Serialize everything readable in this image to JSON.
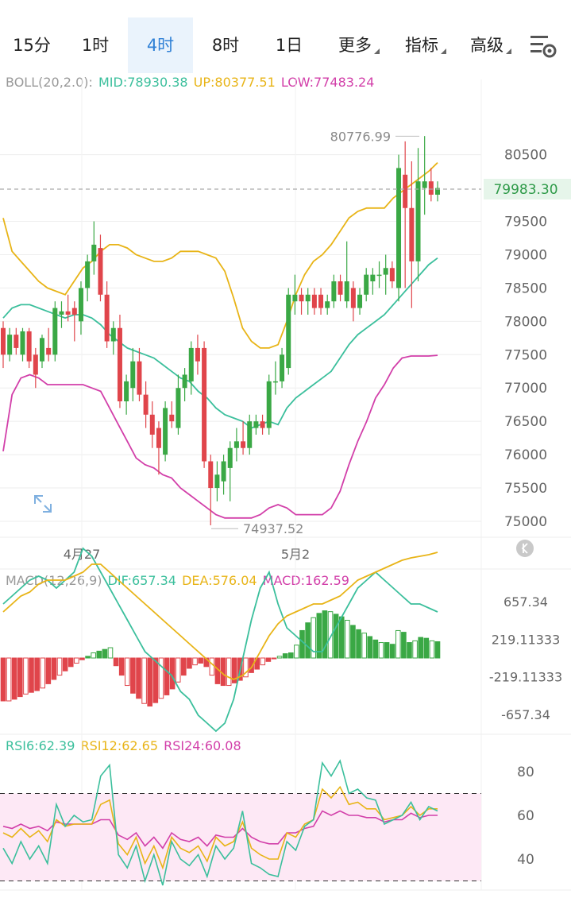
{
  "tabs": [
    {
      "label": "15分",
      "active": false,
      "dropdown": false
    },
    {
      "label": "1时",
      "active": false,
      "dropdown": false
    },
    {
      "label": "4时",
      "active": true,
      "dropdown": false
    },
    {
      "label": "8时",
      "active": false,
      "dropdown": false
    },
    {
      "label": "1日",
      "active": false,
      "dropdown": false
    },
    {
      "label": "更多",
      "active": false,
      "dropdown": true
    },
    {
      "label": "指标",
      "active": false,
      "dropdown": true
    },
    {
      "label": "高级",
      "active": false,
      "dropdown": true
    }
  ],
  "settings_icon": "chart-settings-icon",
  "boll": {
    "label": "BOLL(20,2.0):",
    "mid": "MID:78930.38",
    "up": "UP:80377.51",
    "low": "LOW:77483.24"
  },
  "macd": {
    "label": "MACD(12,26,9)",
    "dif": "DIF:657.34",
    "dea": "DEA:576.04",
    "macd": "MACD:162.59"
  },
  "rsi": {
    "rsi6": "RSI6:62.39",
    "rsi12": "RSI12:62.65",
    "rsi24": "RSI24:60.08"
  },
  "colors": {
    "up": "#3aa845",
    "down": "#e0454b",
    "mid": "#3bbf9c",
    "upper": "#e8b417",
    "lower": "#d23fa9",
    "accent": "#2f80d6"
  },
  "chart_data": {
    "type": "candlestick",
    "x_labels": [
      "4月27",
      "5月2"
    ],
    "ylim": [
      74800,
      80900
    ],
    "y_ticks": [
      "80500",
      "79500",
      "79000",
      "78500",
      "78000",
      "77500",
      "77000",
      "76500",
      "76000",
      "75500",
      "75000"
    ],
    "last_price": "79983.30",
    "high_marker": "80776.99",
    "low_marker": "74937.52",
    "candles": [
      {
        "o": 77900,
        "h": 78000,
        "l": 77300,
        "c": 77500
      },
      {
        "o": 77500,
        "h": 77900,
        "l": 77400,
        "c": 77800
      },
      {
        "o": 77800,
        "h": 77900,
        "l": 77500,
        "c": 77600
      },
      {
        "o": 77500,
        "h": 77900,
        "l": 77400,
        "c": 77850
      },
      {
        "o": 77850,
        "h": 77900,
        "l": 77300,
        "c": 77400
      },
      {
        "o": 77500,
        "h": 77600,
        "l": 77000,
        "c": 77200
      },
      {
        "o": 77400,
        "h": 77800,
        "l": 77300,
        "c": 77750
      },
      {
        "o": 77600,
        "h": 77900,
        "l": 77400,
        "c": 77500
      },
      {
        "o": 77500,
        "h": 78300,
        "l": 77400,
        "c": 78200
      },
      {
        "o": 78100,
        "h": 78300,
        "l": 77900,
        "c": 78150
      },
      {
        "o": 78150,
        "h": 78400,
        "l": 78000,
        "c": 78100
      },
      {
        "o": 78200,
        "h": 78300,
        "l": 77700,
        "c": 78100
      },
      {
        "o": 78000,
        "h": 78600,
        "l": 77800,
        "c": 78500
      },
      {
        "o": 78500,
        "h": 79000,
        "l": 78300,
        "c": 78900
      },
      {
        "o": 78900,
        "h": 79500,
        "l": 78700,
        "c": 79150
      },
      {
        "o": 79100,
        "h": 79300,
        "l": 78300,
        "c": 78400
      },
      {
        "o": 78400,
        "h": 78600,
        "l": 77600,
        "c": 77700
      },
      {
        "o": 77700,
        "h": 78000,
        "l": 77500,
        "c": 77900
      },
      {
        "o": 77900,
        "h": 78100,
        "l": 76700,
        "c": 76800
      },
      {
        "o": 76800,
        "h": 77200,
        "l": 76600,
        "c": 77100
      },
      {
        "o": 77000,
        "h": 77600,
        "l": 76800,
        "c": 77400
      },
      {
        "o": 77400,
        "h": 77600,
        "l": 76800,
        "c": 76900
      },
      {
        "o": 76900,
        "h": 77100,
        "l": 76400,
        "c": 76600
      },
      {
        "o": 76600,
        "h": 76800,
        "l": 76100,
        "c": 76300
      },
      {
        "o": 76400,
        "h": 76500,
        "l": 75700,
        "c": 76100
      },
      {
        "o": 76000,
        "h": 76800,
        "l": 75900,
        "c": 76700
      },
      {
        "o": 76600,
        "h": 76800,
        "l": 76400,
        "c": 76500
      },
      {
        "o": 76400,
        "h": 77200,
        "l": 76300,
        "c": 77000
      },
      {
        "o": 77000,
        "h": 77300,
        "l": 76800,
        "c": 77200
      },
      {
        "o": 77100,
        "h": 77700,
        "l": 76900,
        "c": 77600
      },
      {
        "o": 77600,
        "h": 77800,
        "l": 77200,
        "c": 77400
      },
      {
        "o": 77600,
        "h": 77700,
        "l": 75800,
        "c": 75900
      },
      {
        "o": 75900,
        "h": 76000,
        "l": 74940,
        "c": 75500
      },
      {
        "o": 75500,
        "h": 75900,
        "l": 75300,
        "c": 75700
      },
      {
        "o": 75600,
        "h": 76000,
        "l": 75400,
        "c": 75900
      },
      {
        "o": 75800,
        "h": 76200,
        "l": 75300,
        "c": 76100
      },
      {
        "o": 76100,
        "h": 76400,
        "l": 75900,
        "c": 76200
      },
      {
        "o": 76200,
        "h": 76500,
        "l": 76000,
        "c": 76100
      },
      {
        "o": 76100,
        "h": 76600,
        "l": 76000,
        "c": 76500
      },
      {
        "o": 76400,
        "h": 76600,
        "l": 76300,
        "c": 76500
      },
      {
        "o": 76500,
        "h": 76600,
        "l": 76300,
        "c": 76400
      },
      {
        "o": 76400,
        "h": 77200,
        "l": 76300,
        "c": 77100
      },
      {
        "o": 77100,
        "h": 77400,
        "l": 76900,
        "c": 77100
      },
      {
        "o": 77100,
        "h": 77600,
        "l": 77000,
        "c": 77500
      },
      {
        "o": 77300,
        "h": 78500,
        "l": 77200,
        "c": 78400
      },
      {
        "o": 78300,
        "h": 78700,
        "l": 78100,
        "c": 78400
      },
      {
        "o": 78400,
        "h": 78500,
        "l": 78100,
        "c": 78300
      },
      {
        "o": 78300,
        "h": 78500,
        "l": 78100,
        "c": 78400
      },
      {
        "o": 78400,
        "h": 78500,
        "l": 78100,
        "c": 78200
      },
      {
        "o": 78400,
        "h": 78500,
        "l": 78100,
        "c": 78200
      },
      {
        "o": 78200,
        "h": 78400,
        "l": 78100,
        "c": 78300
      },
      {
        "o": 78300,
        "h": 78700,
        "l": 78200,
        "c": 78600
      },
      {
        "o": 78600,
        "h": 78700,
        "l": 78300,
        "c": 78400
      },
      {
        "o": 78300,
        "h": 79200,
        "l": 78200,
        "c": 78600
      },
      {
        "o": 78500,
        "h": 78600,
        "l": 78000,
        "c": 78200
      },
      {
        "o": 78200,
        "h": 78500,
        "l": 78100,
        "c": 78400
      },
      {
        "o": 78400,
        "h": 78800,
        "l": 78300,
        "c": 78700
      },
      {
        "o": 78600,
        "h": 78800,
        "l": 78400,
        "c": 78700
      },
      {
        "o": 78700,
        "h": 78900,
        "l": 78500,
        "c": 78700
      },
      {
        "o": 78700,
        "h": 79000,
        "l": 78400,
        "c": 78800
      },
      {
        "o": 78800,
        "h": 78900,
        "l": 78500,
        "c": 78600
      },
      {
        "o": 78500,
        "h": 80500,
        "l": 78300,
        "c": 80300
      },
      {
        "o": 80200,
        "h": 80700,
        "l": 78500,
        "c": 79700
      },
      {
        "o": 79700,
        "h": 80400,
        "l": 78200,
        "c": 78900
      },
      {
        "o": 78900,
        "h": 80600,
        "l": 78600,
        "c": 80100
      },
      {
        "o": 80000,
        "h": 80780,
        "l": 79600,
        "c": 80100
      },
      {
        "o": 80100,
        "h": 80300,
        "l": 79800,
        "c": 79900
      },
      {
        "o": 79900,
        "h": 80100,
        "l": 79800,
        "c": 80000
      }
    ],
    "boll_mid": [
      78050,
      78200,
      78250,
      78250,
      78200,
      78150,
      78100,
      78050,
      78100,
      78100,
      78050,
      77950,
      77800,
      77700,
      77600,
      77550,
      77500,
      77450,
      77350,
      77250,
      77150,
      77100,
      76950,
      76850,
      76700,
      76600,
      76550,
      76500,
      76400,
      76450,
      76500,
      76450,
      76700,
      76850,
      76950,
      77050,
      77150,
      77250,
      77450,
      77650,
      77800,
      77900,
      78000,
      78100,
      78250,
      78400,
      78550,
      78700,
      78850,
      78950
    ],
    "boll_up": [
      79550,
      79050,
      78900,
      78750,
      78600,
      78500,
      78450,
      78400,
      78600,
      78800,
      78900,
      79050,
      79150,
      79150,
      79100,
      79000,
      78950,
      78900,
      78900,
      78950,
      79050,
      79050,
      79050,
      79000,
      78950,
      78750,
      78350,
      77900,
      77700,
      77600,
      77600,
      77650,
      78000,
      78400,
      78700,
      78900,
      79000,
      79150,
      79350,
      79550,
      79650,
      79700,
      79700,
      79700,
      79850,
      79950,
      80050,
      80150,
      80250,
      80380
    ],
    "boll_low": [
      76050,
      76900,
      77150,
      77200,
      77150,
      77050,
      77050,
      77050,
      77050,
      77050,
      77000,
      76950,
      76700,
      76450,
      76200,
      75950,
      75850,
      75800,
      75700,
      75650,
      75500,
      75400,
      75300,
      75200,
      75100,
      75050,
      75050,
      75050,
      75050,
      75100,
      75200,
      75250,
      75200,
      75100,
      75100,
      75100,
      75100,
      75200,
      75450,
      75850,
      76200,
      76500,
      76850,
      77050,
      77300,
      77450,
      77480,
      77480,
      77480,
      77490
    ],
    "macd_hist": [
      -500,
      -500,
      -480,
      -450,
      -420,
      -400,
      -380,
      -350,
      -300,
      -250,
      -200,
      -150,
      -100,
      -60,
      -20,
      20,
      60,
      80,
      100,
      120,
      -90,
      -200,
      -320,
      -410,
      -470,
      -530,
      -560,
      -520,
      -470,
      -430,
      -360,
      -280,
      -200,
      -120,
      -80,
      -60,
      -100,
      -200,
      -300,
      -320,
      -320,
      -290,
      -260,
      -220,
      -170,
      -130,
      -80,
      -40,
      -10,
      20,
      50,
      60,
      150,
      320,
      410,
      470,
      520,
      550,
      540,
      510,
      480,
      440,
      380,
      330,
      290,
      250,
      210,
      180,
      180,
      160,
      320,
      300,
      180,
      200,
      240,
      230,
      200,
      190
    ]
  }
}
